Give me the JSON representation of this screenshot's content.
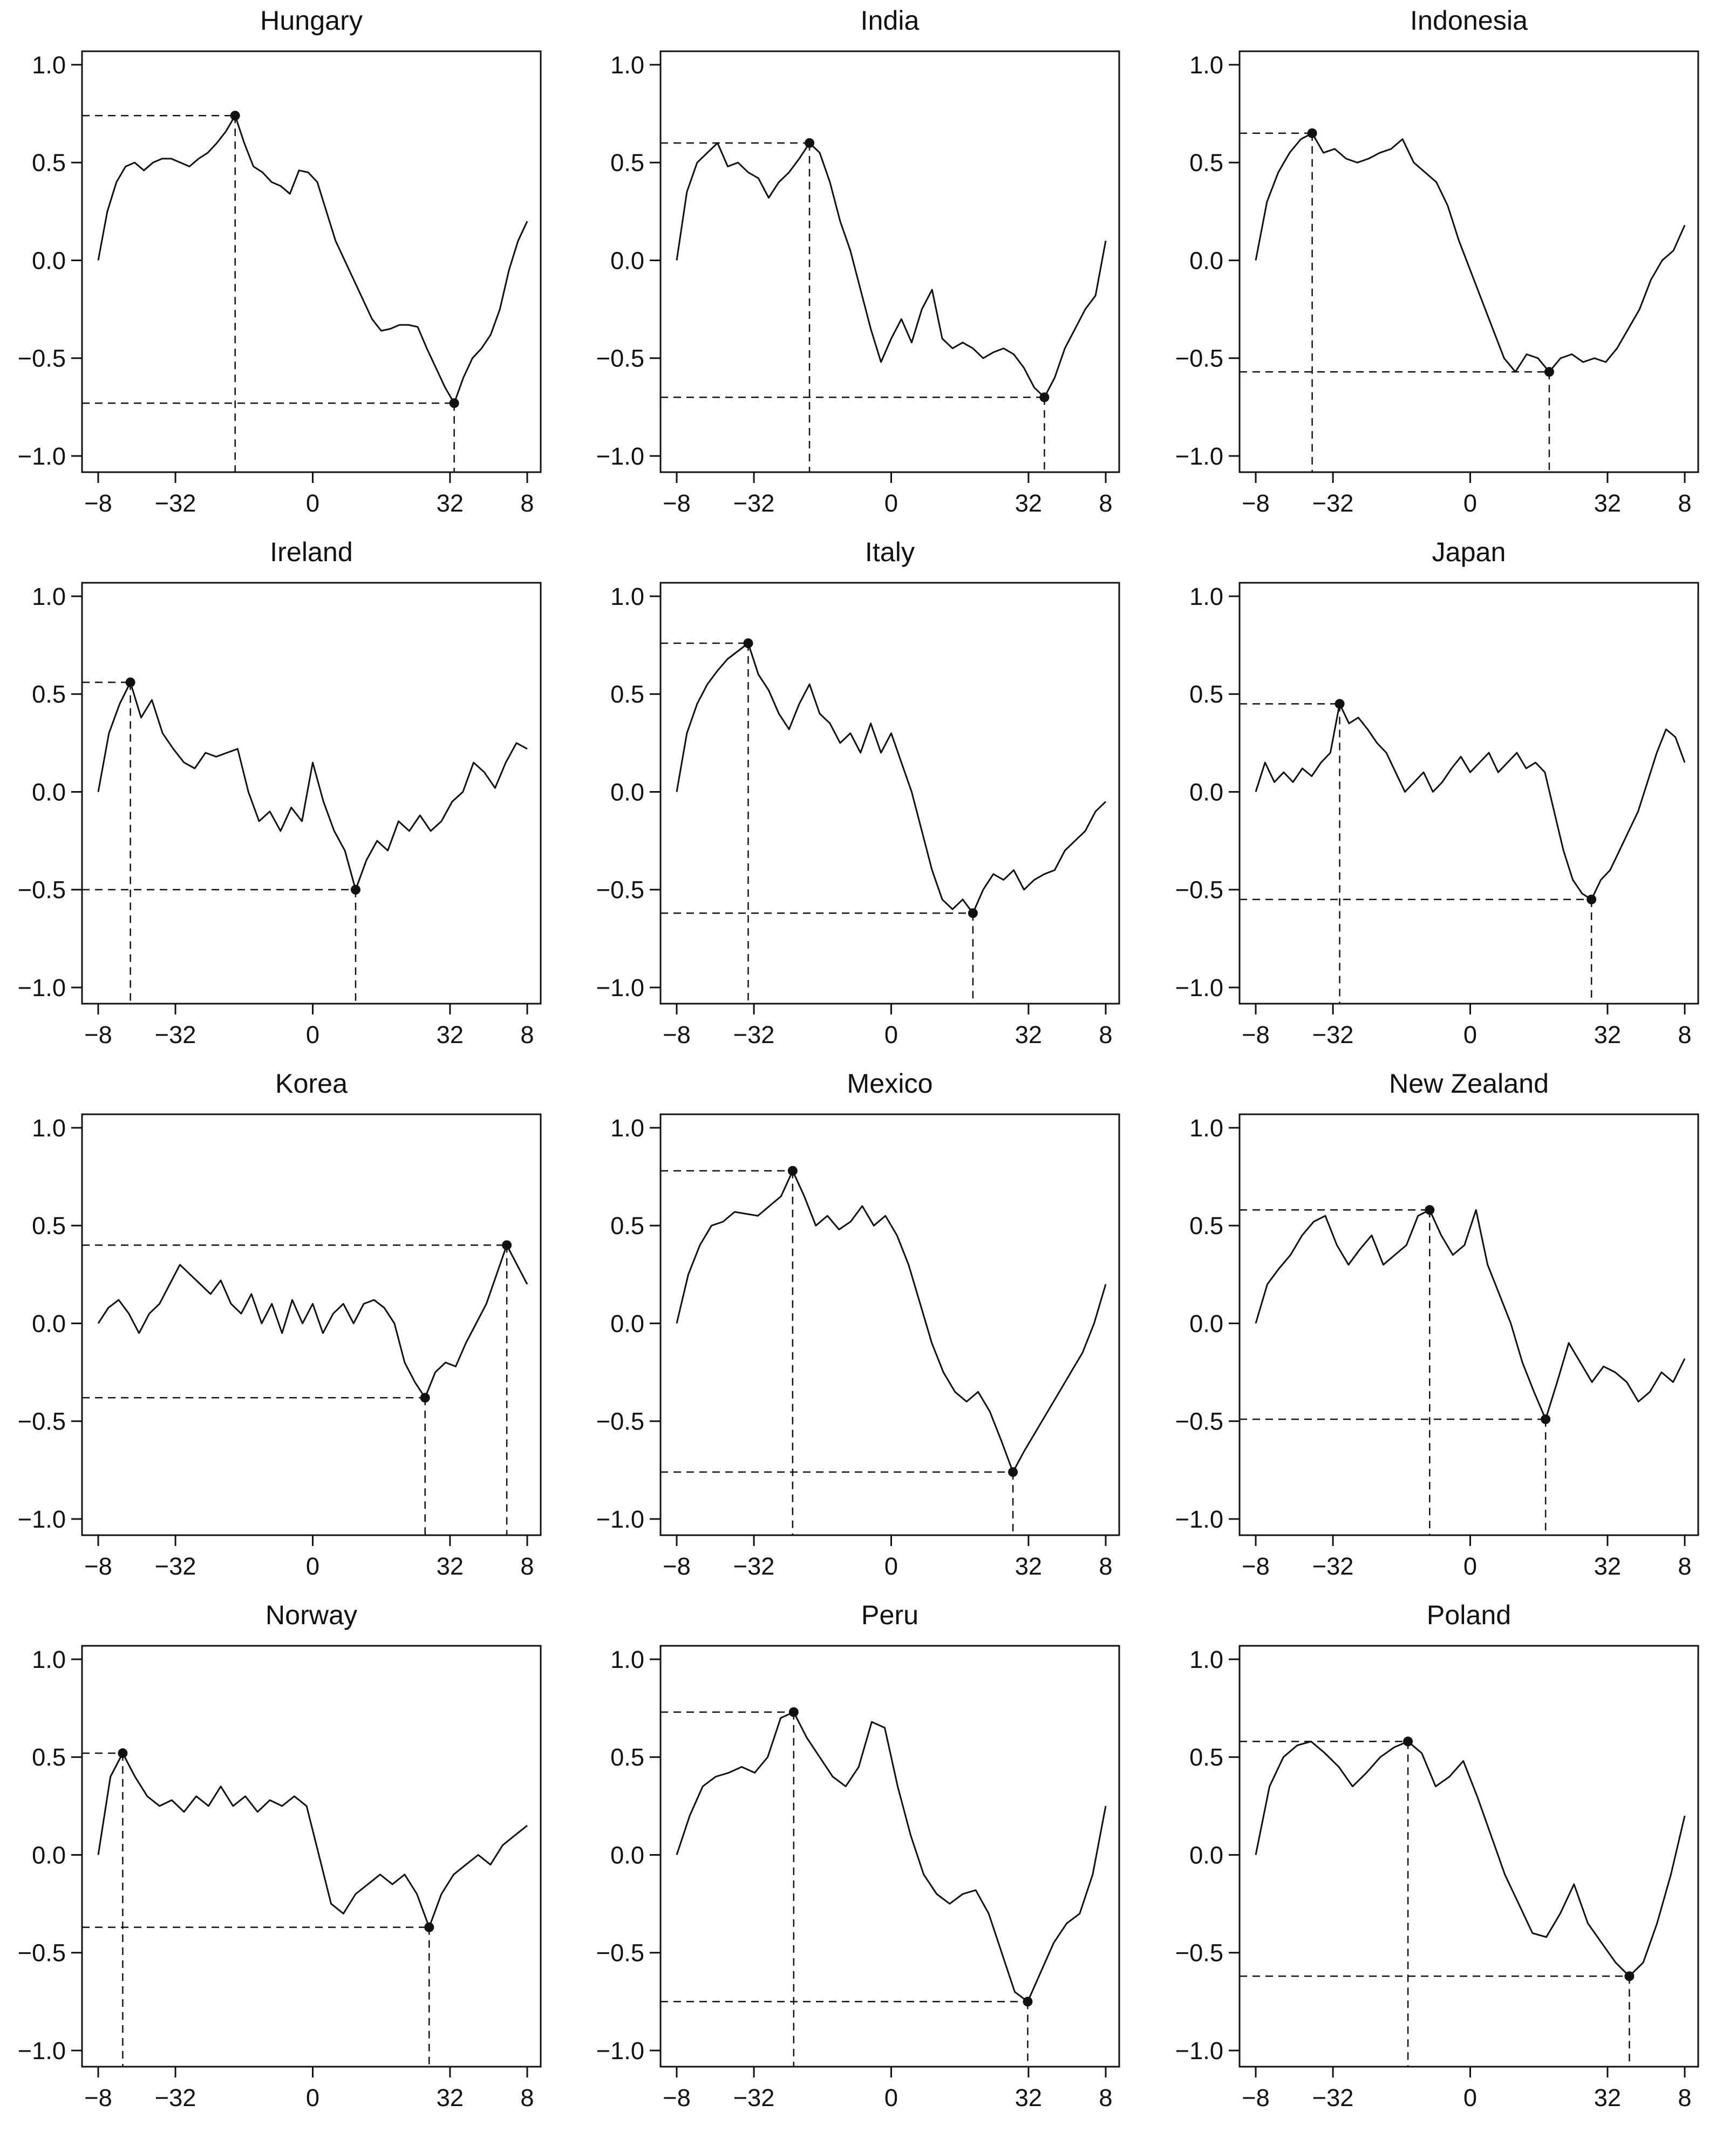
{
  "chart_data": [
    {
      "type": "line",
      "title": "Hungary",
      "xticks": [
        "−8",
        "−32",
        "0",
        "32",
        "8"
      ],
      "yticks": [
        "1.0",
        "0.5",
        "0.0",
        "−0.5",
        "−1.0"
      ],
      "ylim": [
        -1.0,
        1.0
      ],
      "series": [
        {
          "values": [
            0.0,
            0.25,
            0.4,
            0.48,
            0.5,
            0.46,
            0.5,
            0.52,
            0.52,
            0.5,
            0.48,
            0.52,
            0.55,
            0.6,
            0.66,
            0.74,
            0.6,
            0.48,
            0.45,
            0.4,
            0.38,
            0.34,
            0.46,
            0.45,
            0.4,
            0.25,
            0.1,
            0.0,
            -0.1,
            -0.2,
            -0.3,
            -0.36,
            -0.35,
            -0.33,
            -0.33,
            -0.34,
            -0.45,
            -0.55,
            -0.65,
            -0.73,
            -0.6,
            -0.5,
            -0.45,
            -0.38,
            -0.25,
            -0.05,
            0.1,
            0.2
          ]
        }
      ],
      "markers": [
        {
          "label": "max",
          "x": 15,
          "y": 0.74
        },
        {
          "label": "min",
          "x": 39,
          "y": -0.73
        }
      ]
    },
    {
      "type": "line",
      "title": "India",
      "xticks": [
        "−8",
        "−32",
        "0",
        "32",
        "8"
      ],
      "yticks": [
        "1.0",
        "0.5",
        "0.0",
        "−0.5",
        "−1.0"
      ],
      "ylim": [
        -1.0,
        1.0
      ],
      "series": [
        {
          "values": [
            0.0,
            0.35,
            0.5,
            0.55,
            0.6,
            0.48,
            0.5,
            0.45,
            0.42,
            0.32,
            0.4,
            0.45,
            0.52,
            0.6,
            0.55,
            0.4,
            0.2,
            0.05,
            -0.15,
            -0.35,
            -0.52,
            -0.4,
            -0.3,
            -0.42,
            -0.25,
            -0.15,
            -0.4,
            -0.45,
            -0.42,
            -0.45,
            -0.5,
            -0.47,
            -0.45,
            -0.48,
            -0.55,
            -0.65,
            -0.7,
            -0.6,
            -0.45,
            -0.35,
            -0.25,
            -0.18,
            0.1
          ]
        }
      ],
      "markers": [
        {
          "label": "max",
          "x": 13,
          "y": 0.6
        },
        {
          "label": "min",
          "x": 36,
          "y": -0.7
        }
      ]
    },
    {
      "type": "line",
      "title": "Indonesia",
      "xticks": [
        "−8",
        "−32",
        "0",
        "32",
        "8"
      ],
      "yticks": [
        "1.0",
        "0.5",
        "0.0",
        "−0.5",
        "−1.0"
      ],
      "ylim": [
        -1.0,
        1.0
      ],
      "series": [
        {
          "values": [
            0.0,
            0.3,
            0.45,
            0.55,
            0.62,
            0.65,
            0.55,
            0.57,
            0.52,
            0.5,
            0.52,
            0.55,
            0.57,
            0.62,
            0.5,
            0.45,
            0.4,
            0.28,
            0.1,
            -0.05,
            -0.2,
            -0.35,
            -0.5,
            -0.57,
            -0.48,
            -0.5,
            -0.57,
            -0.5,
            -0.48,
            -0.52,
            -0.5,
            -0.52,
            -0.45,
            -0.35,
            -0.25,
            -0.1,
            0.0,
            0.05,
            0.18
          ]
        }
      ],
      "markers": [
        {
          "label": "max",
          "x": 5,
          "y": 0.65
        },
        {
          "label": "min",
          "x": 26,
          "y": -0.57
        }
      ]
    },
    {
      "type": "line",
      "title": "Ireland",
      "xticks": [
        "−8",
        "−32",
        "0",
        "32",
        "8"
      ],
      "yticks": [
        "1.0",
        "0.5",
        "0.0",
        "−0.5",
        "−1.0"
      ],
      "ylim": [
        -1.0,
        1.0
      ],
      "series": [
        {
          "values": [
            0.0,
            0.3,
            0.45,
            0.56,
            0.38,
            0.47,
            0.3,
            0.22,
            0.15,
            0.12,
            0.2,
            0.18,
            0.2,
            0.22,
            0.0,
            -0.15,
            -0.1,
            -0.2,
            -0.08,
            -0.15,
            0.15,
            -0.05,
            -0.2,
            -0.3,
            -0.5,
            -0.35,
            -0.25,
            -0.3,
            -0.15,
            -0.2,
            -0.12,
            -0.2,
            -0.15,
            -0.05,
            0.0,
            0.15,
            0.1,
            0.02,
            0.15,
            0.25,
            0.22
          ]
        }
      ],
      "markers": [
        {
          "label": "max",
          "x": 3,
          "y": 0.56
        },
        {
          "label": "min",
          "x": 24,
          "y": -0.5
        }
      ]
    },
    {
      "type": "line",
      "title": "Italy",
      "xticks": [
        "−8",
        "−32",
        "0",
        "32",
        "8"
      ],
      "yticks": [
        "1.0",
        "0.5",
        "0.0",
        "−0.5",
        "−1.0"
      ],
      "ylim": [
        -1.0,
        1.0
      ],
      "series": [
        {
          "values": [
            0.0,
            0.3,
            0.45,
            0.55,
            0.62,
            0.68,
            0.72,
            0.76,
            0.6,
            0.52,
            0.4,
            0.32,
            0.45,
            0.55,
            0.4,
            0.35,
            0.25,
            0.3,
            0.2,
            0.35,
            0.2,
            0.3,
            0.15,
            0.0,
            -0.2,
            -0.4,
            -0.55,
            -0.6,
            -0.55,
            -0.62,
            -0.5,
            -0.42,
            -0.45,
            -0.4,
            -0.5,
            -0.45,
            -0.42,
            -0.4,
            -0.3,
            -0.25,
            -0.2,
            -0.1,
            -0.05
          ]
        }
      ],
      "markers": [
        {
          "label": "max",
          "x": 7,
          "y": 0.76
        },
        {
          "label": "min",
          "x": 29,
          "y": -0.62
        }
      ]
    },
    {
      "type": "line",
      "title": "Japan",
      "xticks": [
        "−8",
        "−32",
        "0",
        "32",
        "8"
      ],
      "yticks": [
        "1.0",
        "0.5",
        "0.0",
        "−0.5",
        "−1.0"
      ],
      "ylim": [
        -1.0,
        1.0
      ],
      "series": [
        {
          "values": [
            0.0,
            0.15,
            0.05,
            0.1,
            0.05,
            0.12,
            0.08,
            0.15,
            0.2,
            0.45,
            0.35,
            0.38,
            0.32,
            0.25,
            0.2,
            0.1,
            0.0,
            0.05,
            0.1,
            0.0,
            0.05,
            0.12,
            0.18,
            0.1,
            0.15,
            0.2,
            0.1,
            0.15,
            0.2,
            0.12,
            0.15,
            0.1,
            -0.1,
            -0.3,
            -0.45,
            -0.52,
            -0.55,
            -0.45,
            -0.4,
            -0.3,
            -0.2,
            -0.1,
            0.05,
            0.2,
            0.32,
            0.28,
            0.15
          ]
        }
      ],
      "markers": [
        {
          "label": "max",
          "x": 9,
          "y": 0.45
        },
        {
          "label": "min",
          "x": 36,
          "y": -0.55
        }
      ]
    },
    {
      "type": "line",
      "title": "Korea",
      "xticks": [
        "−8",
        "−32",
        "0",
        "32",
        "8"
      ],
      "yticks": [
        "1.0",
        "0.5",
        "0.0",
        "−0.5",
        "−1.0"
      ],
      "ylim": [
        -1.0,
        1.0
      ],
      "series": [
        {
          "values": [
            0.0,
            0.08,
            0.12,
            0.05,
            -0.05,
            0.05,
            0.1,
            0.2,
            0.3,
            0.25,
            0.2,
            0.15,
            0.22,
            0.1,
            0.05,
            0.15,
            0.0,
            0.1,
            -0.05,
            0.12,
            0.0,
            0.1,
            -0.05,
            0.05,
            0.1,
            0.0,
            0.1,
            0.12,
            0.08,
            0.0,
            -0.2,
            -0.3,
            -0.38,
            -0.25,
            -0.2,
            -0.22,
            -0.1,
            0.0,
            0.1,
            0.25,
            0.4,
            0.3,
            0.2
          ]
        }
      ],
      "markers": [
        {
          "label": "min",
          "x": 32,
          "y": -0.38
        },
        {
          "label": "max",
          "x": 40,
          "y": 0.4
        }
      ]
    },
    {
      "type": "line",
      "title": "Mexico",
      "xticks": [
        "−8",
        "−32",
        "0",
        "32",
        "8"
      ],
      "yticks": [
        "1.0",
        "0.5",
        "0.0",
        "−0.5",
        "−1.0"
      ],
      "ylim": [
        -1.0,
        1.0
      ],
      "series": [
        {
          "values": [
            0.0,
            0.25,
            0.4,
            0.5,
            0.52,
            0.57,
            0.56,
            0.55,
            0.6,
            0.65,
            0.78,
            0.65,
            0.5,
            0.55,
            0.48,
            0.52,
            0.6,
            0.5,
            0.55,
            0.45,
            0.3,
            0.1,
            -0.1,
            -0.25,
            -0.35,
            -0.4,
            -0.35,
            -0.45,
            -0.6,
            -0.76,
            -0.65,
            -0.55,
            -0.45,
            -0.35,
            -0.25,
            -0.15,
            0.0,
            0.2
          ]
        }
      ],
      "markers": [
        {
          "label": "max",
          "x": 10,
          "y": 0.78
        },
        {
          "label": "min",
          "x": 29,
          "y": -0.76
        }
      ]
    },
    {
      "type": "line",
      "title": "New Zealand",
      "xticks": [
        "−8",
        "−32",
        "0",
        "32",
        "8"
      ],
      "yticks": [
        "1.0",
        "0.5",
        "0.0",
        "−0.5",
        "−1.0"
      ],
      "ylim": [
        -1.0,
        1.0
      ],
      "series": [
        {
          "values": [
            0.0,
            0.2,
            0.28,
            0.35,
            0.45,
            0.52,
            0.55,
            0.4,
            0.3,
            0.38,
            0.45,
            0.3,
            0.35,
            0.4,
            0.55,
            0.58,
            0.45,
            0.35,
            0.4,
            0.58,
            0.3,
            0.15,
            0.0,
            -0.2,
            -0.35,
            -0.49,
            -0.3,
            -0.1,
            -0.2,
            -0.3,
            -0.22,
            -0.25,
            -0.3,
            -0.4,
            -0.35,
            -0.25,
            -0.3,
            -0.18
          ]
        }
      ],
      "markers": [
        {
          "label": "max",
          "x": 15,
          "y": 0.58
        },
        {
          "label": "min",
          "x": 25,
          "y": -0.49
        }
      ]
    },
    {
      "type": "line",
      "title": "Norway",
      "xticks": [
        "−8",
        "−32",
        "0",
        "32",
        "8"
      ],
      "yticks": [
        "1.0",
        "0.5",
        "0.0",
        "−0.5",
        "−1.0"
      ],
      "ylim": [
        -1.0,
        1.0
      ],
      "series": [
        {
          "values": [
            0.0,
            0.4,
            0.52,
            0.4,
            0.3,
            0.25,
            0.28,
            0.22,
            0.3,
            0.25,
            0.35,
            0.25,
            0.3,
            0.22,
            0.28,
            0.25,
            0.3,
            0.25,
            0.0,
            -0.25,
            -0.3,
            -0.2,
            -0.15,
            -0.1,
            -0.15,
            -0.1,
            -0.2,
            -0.37,
            -0.2,
            -0.1,
            -0.05,
            0.0,
            -0.05,
            0.05,
            0.1,
            0.15
          ]
        }
      ],
      "markers": [
        {
          "label": "max",
          "x": 2,
          "y": 0.52
        },
        {
          "label": "min",
          "x": 27,
          "y": -0.37
        }
      ]
    },
    {
      "type": "line",
      "title": "Peru",
      "xticks": [
        "−8",
        "−32",
        "0",
        "32",
        "8"
      ],
      "yticks": [
        "1.0",
        "0.5",
        "0.0",
        "−0.5",
        "−1.0"
      ],
      "ylim": [
        -1.0,
        1.0
      ],
      "series": [
        {
          "values": [
            0.0,
            0.2,
            0.35,
            0.4,
            0.42,
            0.45,
            0.42,
            0.5,
            0.7,
            0.73,
            0.6,
            0.5,
            0.4,
            0.35,
            0.45,
            0.68,
            0.65,
            0.35,
            0.1,
            -0.1,
            -0.2,
            -0.25,
            -0.2,
            -0.18,
            -0.3,
            -0.5,
            -0.7,
            -0.75,
            -0.6,
            -0.45,
            -0.35,
            -0.3,
            -0.1,
            0.25
          ]
        }
      ],
      "markers": [
        {
          "label": "max",
          "x": 9,
          "y": 0.73
        },
        {
          "label": "min",
          "x": 27,
          "y": -0.75
        }
      ]
    },
    {
      "type": "line",
      "title": "Poland",
      "xticks": [
        "−8",
        "−32",
        "0",
        "32",
        "8"
      ],
      "yticks": [
        "1.0",
        "0.5",
        "0.0",
        "−0.5",
        "−1.0"
      ],
      "ylim": [
        -1.0,
        1.0
      ],
      "series": [
        {
          "values": [
            0.0,
            0.35,
            0.5,
            0.56,
            0.58,
            0.52,
            0.45,
            0.35,
            0.42,
            0.5,
            0.55,
            0.58,
            0.52,
            0.35,
            0.4,
            0.48,
            0.3,
            0.1,
            -0.1,
            -0.25,
            -0.4,
            -0.42,
            -0.3,
            -0.15,
            -0.35,
            -0.45,
            -0.55,
            -0.62,
            -0.55,
            -0.35,
            -0.1,
            0.2
          ]
        }
      ],
      "markers": [
        {
          "label": "max",
          "x": 11,
          "y": 0.58
        },
        {
          "label": "min",
          "x": 27,
          "y": -0.62
        }
      ]
    }
  ]
}
